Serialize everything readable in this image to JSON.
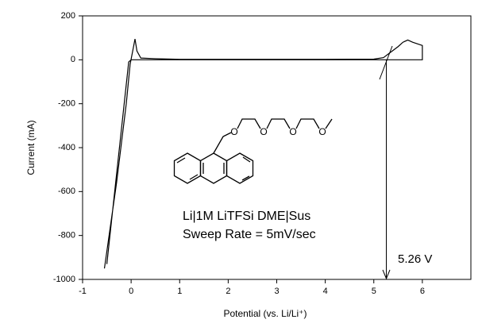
{
  "chart_data": {
    "type": "line",
    "x": [
      -0.55,
      -0.3,
      -0.1,
      -0.02,
      0.05,
      0.08,
      0.12,
      0.2,
      0.5,
      1,
      2,
      3,
      4,
      5,
      5.2,
      5.35,
      5.5,
      5.6,
      5.7,
      5.8,
      6,
      6,
      5,
      4,
      3,
      2,
      1,
      0,
      -0.05,
      -0.5
    ],
    "values": [
      -950,
      -560,
      -200,
      -20,
      60,
      95,
      40,
      8,
      5,
      2,
      2,
      2,
      2,
      3,
      10,
      35,
      60,
      80,
      90,
      80,
      65,
      0,
      0,
      0,
      0,
      0,
      0,
      0,
      -10,
      -930
    ],
    "color": "#000000",
    "xlim": [
      -1,
      7
    ],
    "xticks": [
      -1,
      0,
      1,
      2,
      3,
      4,
      5,
      6
    ],
    "ylim": [
      -1000,
      200
    ],
    "yticks": [
      200,
      0,
      -200,
      -400,
      -600,
      -800,
      -1000
    ],
    "xlabel": "Potential (vs. Li/Li⁺)",
    "ylabel": "Current (mA)",
    "annotations": [
      "Li|1M LiTFSi DME|Sus",
      "Sweep Rate = 5mV/sec",
      "5.26 V"
    ],
    "structure_atoms": [
      "O",
      "O",
      "O",
      "O"
    ],
    "grid": false
  }
}
